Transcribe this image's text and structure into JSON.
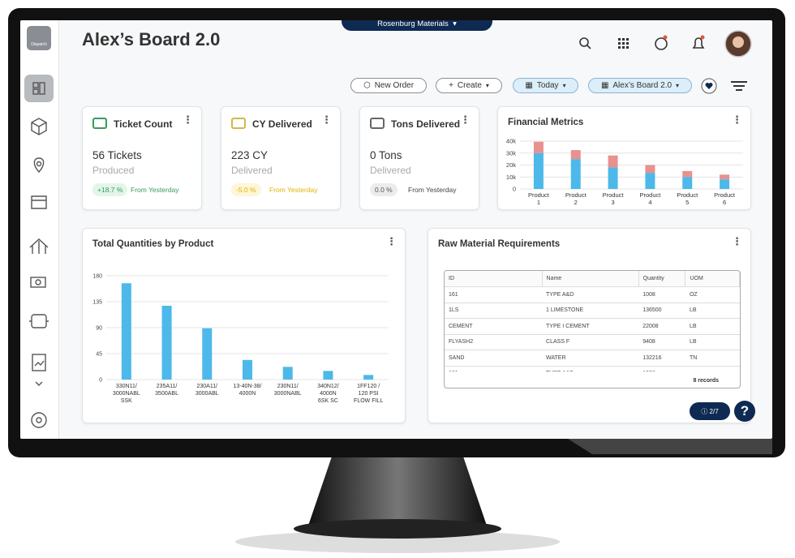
{
  "app": {
    "logo_label": "Dispatch",
    "company": "Rosenburg Materials",
    "title": "Alex’s Board 2.0"
  },
  "toolbar": [
    "New Order",
    "Create",
    "Today",
    "Alex’s Board 2.0"
  ],
  "kpis": [
    {
      "title": "Ticket Count",
      "value": "56 Tickets",
      "sub": "Produced",
      "change": "+18.7 %",
      "note": "From Yesterday"
    },
    {
      "title": "CY Delivered",
      "value": "223 CY",
      "sub": "Delivered",
      "change": "-5.0 %",
      "note": "From Yesterday"
    },
    {
      "title": "Tons Delivered",
      "value": "0 Tons",
      "sub": "Delivered",
      "change": "0.0 %",
      "note": "From Yesterday"
    }
  ],
  "chart_data": [
    {
      "type": "bar",
      "stacked": true,
      "title": "Financial Metrics",
      "categories": [
        [
          "Product",
          "1"
        ],
        [
          "Product",
          "2"
        ],
        [
          "Product",
          "3"
        ],
        [
          "Product",
          "4"
        ],
        [
          "Product",
          "5"
        ],
        [
          "Product",
          "6"
        ]
      ],
      "series": [
        {
          "color": "#4db8ea",
          "values": [
            30000,
            25000,
            18000,
            13500,
            10000,
            8000
          ]
        },
        {
          "color": "#e8918f",
          "values": [
            9500,
            7500,
            10000,
            6500,
            5000,
            4000
          ]
        }
      ],
      "ylim": [
        0,
        40000
      ],
      "yticks": [
        0,
        {
          "value": 10000,
          "label": "10k"
        },
        {
          "value": 20000,
          "label": "20k"
        },
        {
          "value": 30000,
          "label": "30k"
        },
        {
          "value": 40000,
          "label": "40k"
        }
      ],
      "grid": true
    },
    {
      "type": "bar",
      "title": "Total Quantities by Product",
      "categories": [
        [
          "330N11/",
          "3000NABL",
          "SSK"
        ],
        [
          "235A11/",
          "3500ABL"
        ],
        [
          "230A11/",
          "3000ABL"
        ],
        [
          "13-40N-38/",
          "4000N"
        ],
        [
          "230N11/",
          "3000NABL"
        ],
        [
          "340N12/",
          "4000N",
          "6SK SC"
        ],
        [
          "1FF120 /",
          "120 PSI",
          "FLOW FILL"
        ]
      ],
      "color": "#4db8ea",
      "values": [
        167,
        128,
        89,
        34,
        22,
        15,
        8
      ],
      "ylim": [
        0,
        180
      ],
      "yticks": [
        0,
        45,
        90,
        135,
        180
      ],
      "grid": true
    }
  ],
  "table": {
    "title": "Raw Material Requirements",
    "columns": [
      "ID",
      "Name",
      "Quantity",
      "UOM"
    ],
    "rows": [
      [
        "161",
        "TYPE A&D",
        "1008",
        "OZ"
      ],
      [
        "1LS",
        "1 LIMESTONE",
        "136500",
        "LB"
      ],
      [
        "CEMENT",
        "TYPE I CEMENT",
        "22008",
        "LB"
      ],
      [
        "FLYASH2",
        "CLASS F",
        "9408",
        "LB"
      ],
      [
        "SAND",
        "WATER",
        "132216",
        "TN"
      ],
      [
        "161",
        "TYPE A&D",
        "1008"
      ]
    ],
    "footer": "8 records"
  },
  "help": {
    "badge": "2/7"
  }
}
